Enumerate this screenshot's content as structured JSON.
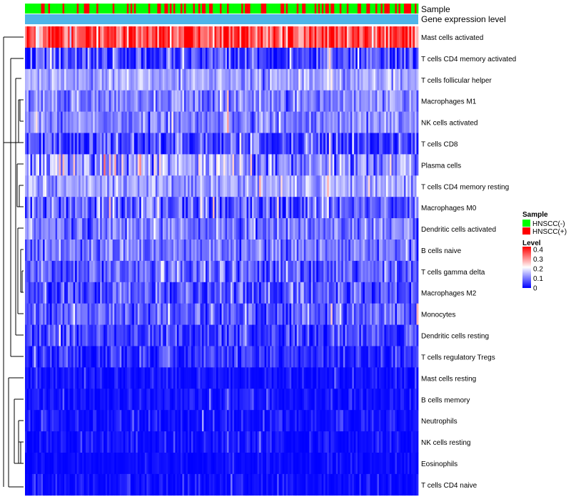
{
  "chart_data": {
    "type": "heatmap",
    "annotation_tracks": [
      {
        "name": "Sample",
        "legend_title": "Sample",
        "categories": [
          {
            "label": "HNSCC(-)",
            "color": "#00ff00"
          },
          {
            "label": "HNSCC(+)",
            "color": "#ff0000"
          }
        ]
      },
      {
        "name": "Gene expression level",
        "color": "#4fb4e8"
      }
    ],
    "color_scale": {
      "title": "Level",
      "min": 0,
      "max": 0.4,
      "ticks": [
        "0.4",
        "0.3",
        "0.2",
        "0.1",
        "0"
      ],
      "colors": [
        "#0000ff",
        "#ffffff",
        "#ff0000"
      ],
      "midpoint": 0.2
    },
    "rows": [
      {
        "label": "Mast cells activated",
        "mean": 0.34,
        "spread": 0.09
      },
      {
        "label": "T cells CD4 memory activated",
        "mean": 0.05,
        "spread": 0.08
      },
      {
        "label": "T cells follicular helper",
        "mean": 0.13,
        "spread": 0.04
      },
      {
        "label": "Macrophages M1",
        "mean": 0.1,
        "spread": 0.05
      },
      {
        "label": "NK cells activated",
        "mean": 0.1,
        "spread": 0.05
      },
      {
        "label": "T cells CD8",
        "mean": 0.05,
        "spread": 0.07
      },
      {
        "label": "Plasma cells",
        "mean": 0.12,
        "spread": 0.09
      },
      {
        "label": "T cells CD4 memory resting",
        "mean": 0.13,
        "spread": 0.05
      },
      {
        "label": "Macrophages M0",
        "mean": 0.08,
        "spread": 0.08
      },
      {
        "label": "Dendritic cells activated",
        "mean": 0.09,
        "spread": 0.05
      },
      {
        "label": "B cells naive",
        "mean": 0.09,
        "spread": 0.05
      },
      {
        "label": "T cells gamma delta",
        "mean": 0.07,
        "spread": 0.06
      },
      {
        "label": "Macrophages M2",
        "mean": 0.06,
        "spread": 0.06
      },
      {
        "label": "Monocytes",
        "mean": 0.07,
        "spread": 0.05
      },
      {
        "label": "Dendritic cells resting",
        "mean": 0.05,
        "spread": 0.05
      },
      {
        "label": "T cells regulatory  Tregs",
        "mean": 0.03,
        "spread": 0.05
      },
      {
        "label": "Mast cells resting",
        "mean": 0.01,
        "spread": 0.03
      },
      {
        "label": "B cells memory",
        "mean": 0.01,
        "spread": 0.03
      },
      {
        "label": "Neutrophils",
        "mean": 0.01,
        "spread": 0.04
      },
      {
        "label": "NK cells resting",
        "mean": 0.01,
        "spread": 0.03
      },
      {
        "label": "Eosinophils",
        "mean": 0.005,
        "spread": 0.02
      },
      {
        "label": "T cells CD4 naive",
        "mean": 0.005,
        "spread": 0.03
      }
    ],
    "n_samples": 220,
    "hnscc_positive_fraction": 0.35,
    "dendrogram": "rows clustered (hierarchical)"
  }
}
